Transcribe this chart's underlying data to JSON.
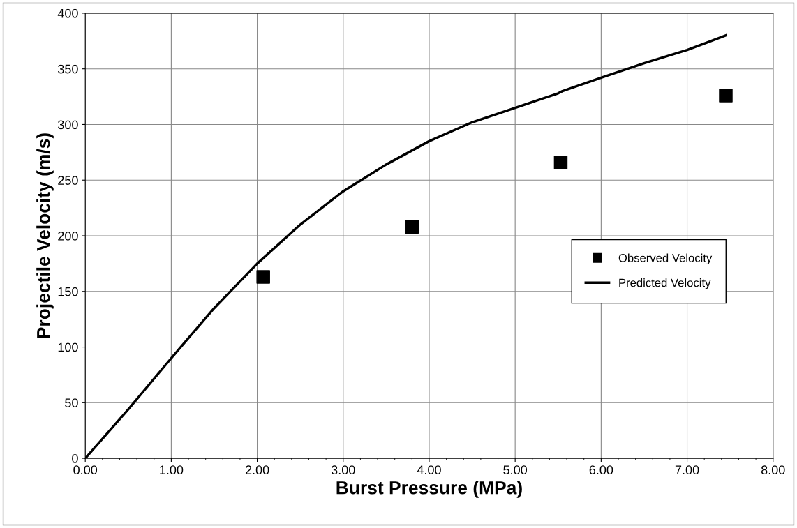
{
  "chart_data": {
    "type": "scatter",
    "xlabel": "Burst Pressure (MPa)",
    "ylabel": "Projectile Velocity (m/s)",
    "xlim": [
      0,
      8
    ],
    "ylim": [
      0,
      400
    ],
    "xticks": [
      {
        "value": 0,
        "label": "0.00"
      },
      {
        "value": 1,
        "label": "1.00"
      },
      {
        "value": 2,
        "label": "2.00"
      },
      {
        "value": 3,
        "label": "3.00"
      },
      {
        "value": 4,
        "label": "4.00"
      },
      {
        "value": 5,
        "label": "5.00"
      },
      {
        "value": 6,
        "label": "6.00"
      },
      {
        "value": 7,
        "label": "7.00"
      },
      {
        "value": 8,
        "label": "8.00"
      }
    ],
    "yticks": [
      0,
      50,
      100,
      150,
      200,
      250,
      300,
      350,
      400
    ],
    "grid": true,
    "legend": "right",
    "series": [
      {
        "name": "Observed Velocity",
        "marker": "square",
        "color": "#000000",
        "x": [
          2.07,
          3.8,
          5.53,
          7.45
        ],
        "values": [
          163,
          208,
          266,
          326
        ]
      },
      {
        "name": "Predicted Velocity",
        "type": "line",
        "marker": "none",
        "line_style": "solid",
        "color": "#000000",
        "x": [
          0,
          0.5,
          1.0,
          1.5,
          2.0,
          2.5,
          3.0,
          3.5,
          4.0,
          4.5,
          5.0,
          5.5,
          5.55,
          6.0,
          6.5,
          7.0,
          7.45
        ],
        "values": [
          0,
          44,
          90,
          135,
          175,
          210,
          240,
          264,
          285,
          302,
          315,
          328,
          330,
          342,
          355,
          367,
          380
        ]
      }
    ]
  }
}
